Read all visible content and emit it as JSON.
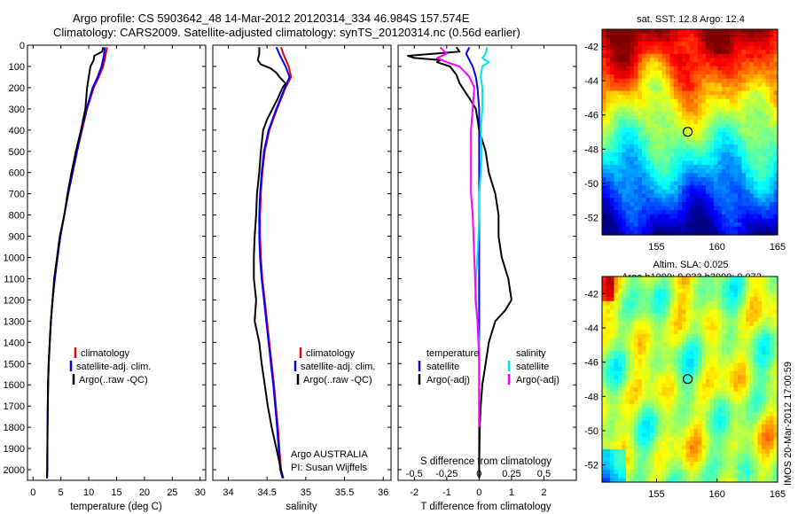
{
  "header": {
    "title_line1": "Argo profile: CS 5903642_48 14-Mar-2012 20120314_334 46.984S 157.574E",
    "title_line2": "Climatology: CARS2009. Satellite-adjusted climatology: synTS_20120314.nc (0.56d earlier)"
  },
  "side_stamp": "IMOS 20-Mar-2012 17:00:59",
  "chart_data": [
    {
      "id": "temperature",
      "type": "line",
      "xlabel": "temperature (deg C)",
      "xlim": [
        -1,
        31
      ],
      "xticks": [
        0,
        5,
        10,
        15,
        20,
        25,
        30
      ],
      "ylim": [
        2050,
        0
      ],
      "yticks": [
        0,
        100,
        200,
        300,
        400,
        500,
        600,
        700,
        800,
        900,
        1000,
        1100,
        1200,
        1300,
        1400,
        1500,
        1600,
        1700,
        1800,
        1900,
        2000
      ],
      "legend": [
        "climatology",
        "satellite-adj. clim.",
        "Argo(..raw -QC)"
      ],
      "series": [
        {
          "name": "climatology",
          "color": "#e00000",
          "x": [
            13.3,
            13.0,
            12.6,
            11.8,
            10.9,
            9.7,
            8.8,
            7.9,
            7.1,
            6.3,
            5.6,
            4.9,
            4.4,
            3.9,
            3.5,
            3.2,
            3.0,
            2.8,
            2.7,
            2.6,
            2.55,
            2.5
          ],
          "y": [
            10,
            50,
            100,
            150,
            200,
            300,
            400,
            500,
            600,
            700,
            800,
            900,
            1000,
            1100,
            1200,
            1300,
            1400,
            1500,
            1600,
            1800,
            2000,
            2040
          ]
        },
        {
          "name": "satellite-adj. clim.",
          "color": "#0000ff",
          "x": [
            12.9,
            12.7,
            12.3,
            11.6,
            10.7,
            9.6,
            8.7,
            7.9,
            7.1,
            6.3,
            5.6,
            4.9,
            4.4,
            3.9,
            3.5,
            3.2,
            3.0,
            2.8,
            2.7,
            2.6,
            2.55,
            2.5
          ],
          "y": [
            10,
            50,
            100,
            150,
            200,
            300,
            400,
            500,
            600,
            700,
            800,
            900,
            1000,
            1100,
            1200,
            1300,
            1400,
            1500,
            1600,
            1800,
            2000,
            2040
          ]
        },
        {
          "name": "Argo(..raw -QC)",
          "color": "#000000",
          "x": [
            12.6,
            12.4,
            11.0,
            10.9,
            10.3,
            10.0,
            9.7,
            9.4,
            8.6,
            7.7,
            6.9,
            6.2,
            5.6,
            4.8,
            4.3,
            3.8,
            3.5,
            3.2,
            3.0,
            2.8,
            2.7,
            2.6,
            2.55,
            2.5
          ],
          "y": [
            10,
            30,
            50,
            70,
            100,
            150,
            200,
            300,
            400,
            500,
            600,
            700,
            800,
            900,
            1000,
            1100,
            1200,
            1300,
            1400,
            1500,
            1600,
            1800,
            2000,
            2040
          ]
        }
      ]
    },
    {
      "id": "salinity",
      "type": "line",
      "xlabel": "salinity",
      "xlim": [
        33.8,
        36.1
      ],
      "xticks": [
        34,
        34.5,
        35,
        35.5,
        36
      ],
      "ylim": [
        2050,
        0
      ],
      "legend": [
        "climatology",
        "satellite-adj. clim.",
        "Argo(..raw -QC)"
      ],
      "annotation": [
        "Argo AUSTRALIA",
        "PI: Susan Wijffels"
      ],
      "series": [
        {
          "name": "climatology",
          "color": "#e00000",
          "x": [
            34.68,
            34.72,
            34.78,
            34.81,
            34.74,
            34.63,
            34.53,
            34.47,
            34.44,
            34.42,
            34.41,
            34.41,
            34.42,
            34.44,
            34.47,
            34.5,
            34.53,
            34.56,
            34.59,
            34.64,
            34.68,
            34.71
          ],
          "y": [
            10,
            50,
            100,
            150,
            200,
            300,
            400,
            500,
            600,
            700,
            800,
            900,
            1000,
            1100,
            1200,
            1300,
            1400,
            1500,
            1600,
            1800,
            2000,
            2040
          ]
        },
        {
          "name": "satellite-adj. clim.",
          "color": "#0000ff",
          "x": [
            34.62,
            34.67,
            34.74,
            34.79,
            34.73,
            34.62,
            34.52,
            34.46,
            34.43,
            34.41,
            34.4,
            34.4,
            34.41,
            34.43,
            34.46,
            34.49,
            34.52,
            34.55,
            34.58,
            34.63,
            34.67,
            34.7
          ],
          "y": [
            10,
            50,
            100,
            150,
            200,
            300,
            400,
            500,
            600,
            700,
            800,
            900,
            1000,
            1100,
            1200,
            1300,
            1400,
            1500,
            1600,
            1800,
            2000,
            2040
          ]
        },
        {
          "name": "Argo(..raw -QC)",
          "color": "#000000",
          "x": [
            34.4,
            34.4,
            34.38,
            34.42,
            34.55,
            34.62,
            34.66,
            34.74,
            34.7,
            34.64,
            34.57,
            34.5,
            34.45,
            34.42,
            34.4,
            34.37,
            34.36,
            34.34,
            34.33,
            34.33,
            34.36,
            34.34,
            34.4,
            34.43,
            34.47,
            34.51,
            34.56,
            34.62,
            34.68,
            34.71
          ],
          "y": [
            10,
            40,
            70,
            90,
            110,
            130,
            150,
            180,
            200,
            250,
            300,
            350,
            400,
            500,
            600,
            700,
            800,
            900,
            1000,
            1100,
            1200,
            1300,
            1400,
            1500,
            1600,
            1700,
            1800,
            1900,
            2000,
            2040
          ]
        }
      ]
    },
    {
      "id": "difference",
      "type": "line",
      "xlabel": "T difference from climatology",
      "xlabel_top": "S difference from climatology",
      "xlim": [
        -2.5,
        3
      ],
      "xticks": [
        -2,
        -1,
        0,
        1,
        2
      ],
      "xticks_s": [
        "-0.5",
        "-0.25",
        "0",
        "0.25",
        "0.5"
      ],
      "ylim": [
        2050,
        0
      ],
      "legend": [
        {
          "group": "temperature",
          "name": "satellite",
          "color": "#0000ff"
        },
        {
          "group": "temperature",
          "name": "Argo(-adj)",
          "color": "#000000"
        },
        {
          "group": "salinity",
          "name": "satellite",
          "color": "#00e5e5"
        },
        {
          "group": "salinity",
          "name": "Argo(-adj)",
          "color": "#ff00ff"
        }
      ],
      "series": [
        {
          "name": "temperature satellite",
          "color": "#0000ff",
          "x": [
            -0.3,
            -0.4,
            -0.3,
            -0.2,
            -0.1,
            -0.05,
            0,
            0,
            0,
            0,
            0,
            0,
            0,
            0,
            0,
            0,
            0,
            0
          ],
          "y": [
            10,
            40,
            70,
            100,
            150,
            200,
            300,
            400,
            500,
            600,
            800,
            1000,
            1200,
            1400,
            1600,
            1800,
            2000,
            2040
          ]
        },
        {
          "name": "temperature Argo(-adj)",
          "color": "#000000",
          "x": [
            -0.7,
            -0.6,
            -2.2,
            -2.0,
            -1.2,
            -1.3,
            -0.9,
            -0.7,
            -0.6,
            -0.3,
            -0.1,
            0.0,
            0.2,
            0.3,
            0.5,
            0.6,
            0.6,
            0.7,
            0.9,
            1.0,
            0.8,
            0.5,
            0.3,
            0.2,
            0.1,
            0.05,
            0.02,
            0.0,
            0.0
          ],
          "y": [
            10,
            30,
            50,
            60,
            70,
            80,
            100,
            140,
            180,
            250,
            300,
            400,
            500,
            600,
            700,
            800,
            900,
            1000,
            1100,
            1200,
            1250,
            1300,
            1400,
            1500,
            1600,
            1700,
            1800,
            2000,
            2040
          ]
        },
        {
          "name": "salinity satellite",
          "color": "#00e5e5",
          "x": [
            0.25,
            0.2,
            0.1,
            0.3,
            0.1,
            0.05,
            0.1,
            0.1,
            0.05,
            0.08,
            0.05,
            0.0,
            0.0,
            -0.02,
            -0.05,
            -0.1,
            -0.12,
            -0.05,
            0.0,
            0.0
          ],
          "y": [
            10,
            40,
            60,
            80,
            100,
            150,
            200,
            300,
            400,
            500,
            600,
            700,
            800,
            900,
            1000,
            1100,
            1200,
            1300,
            1400,
            1800
          ]
        },
        {
          "name": "salinity Argo(-adj)",
          "color": "#ff00ff",
          "x": [
            -1.2,
            -1.0,
            -1.3,
            -1.0,
            -0.6,
            -0.3,
            -0.15,
            -0.2,
            -0.25,
            -0.25,
            -0.25,
            -0.25,
            -0.2,
            -0.15,
            -0.1,
            -0.05,
            -0.02,
            0.0,
            0.0
          ],
          "y": [
            10,
            40,
            60,
            80,
            100,
            150,
            200,
            300,
            400,
            500,
            600,
            700,
            800,
            1000,
            1200,
            1300,
            1400,
            1500,
            1800
          ]
        }
      ]
    },
    {
      "id": "sst_map",
      "type": "heatmap",
      "title": "sat. SST: 12.8  Argo: 12.4",
      "xlim": [
        150.5,
        165
      ],
      "ylim": [
        -53,
        -41
      ],
      "xticks": [
        155,
        160,
        165
      ],
      "yticks": [
        -42,
        -44,
        -46,
        -48,
        -50,
        -52
      ],
      "marker": {
        "lon": 157.574,
        "lat": -46.984
      }
    },
    {
      "id": "sla_map",
      "type": "heatmap",
      "title_line1": "Altim. SLA: 0.025",
      "title_line2": "Argo h1000: 0.033 h2000: 0.073",
      "xlim": [
        150.5,
        165
      ],
      "ylim": [
        -53,
        -41
      ],
      "xticks": [
        155,
        160,
        165
      ],
      "yticks": [
        -42,
        -44,
        -46,
        -48,
        -50,
        -52
      ],
      "marker": {
        "lon": 157.574,
        "lat": -46.984
      }
    }
  ]
}
